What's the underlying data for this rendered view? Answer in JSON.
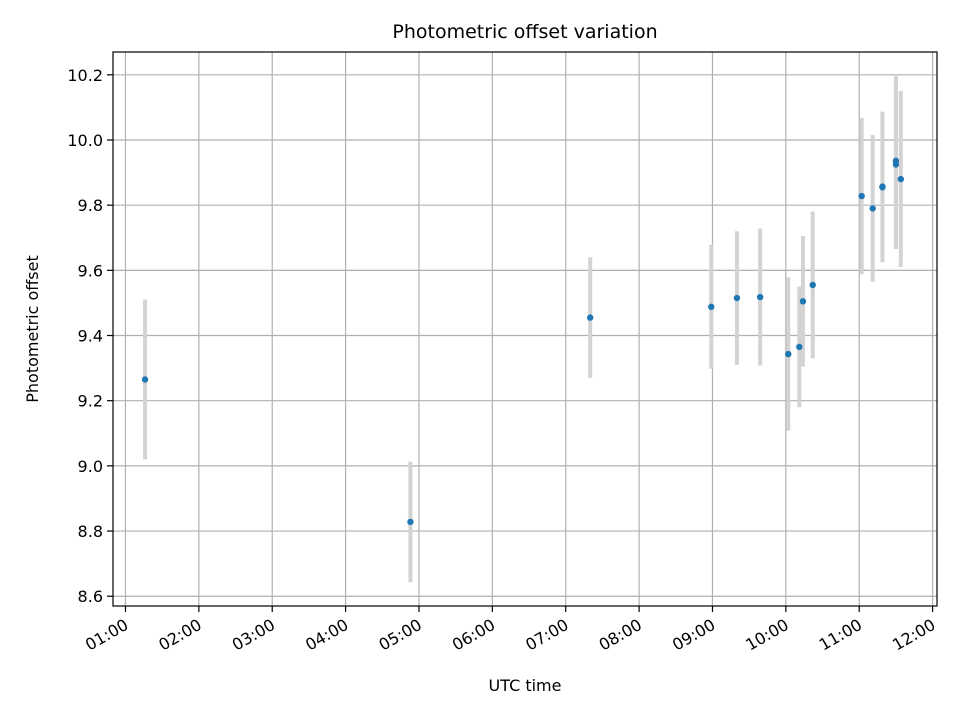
{
  "chart_data": {
    "type": "scatter",
    "title": "Photometric offset variation",
    "xlabel": "UTC time",
    "ylabel": "Photometric offset",
    "x_tick_labels": [
      "01:00",
      "02:00",
      "03:00",
      "04:00",
      "05:00",
      "06:00",
      "07:00",
      "08:00",
      "09:00",
      "10:00",
      "11:00",
      "12:00"
    ],
    "y_tick_labels": [
      "8.6",
      "8.8",
      "9.0",
      "9.2",
      "9.4",
      "9.6",
      "9.8",
      "10.0",
      "10.2"
    ],
    "x_ticks_hours": [
      1,
      2,
      3,
      4,
      5,
      6,
      7,
      8,
      9,
      10,
      11,
      12
    ],
    "y_ticks": [
      8.6,
      8.8,
      9.0,
      9.2,
      9.4,
      9.6,
      9.8,
      10.0,
      10.2
    ],
    "xlim_hours": [
      0.83,
      12.06
    ],
    "ylim": [
      8.57,
      10.27
    ],
    "grid": true,
    "colors": {
      "points": "#1f77b4",
      "errorbars": "#d3d3d3",
      "grid": "#b0b0b0"
    },
    "series": [
      {
        "points": [
          {
            "t": "01:16",
            "y": 9.265,
            "err": 0.245
          },
          {
            "t": "04:53",
            "y": 8.828,
            "err": 0.185
          },
          {
            "t": "07:20",
            "y": 9.455,
            "err": 0.185
          },
          {
            "t": "08:59",
            "y": 9.488,
            "err": 0.19
          },
          {
            "t": "09:20",
            "y": 9.515,
            "err": 0.205
          },
          {
            "t": "09:39",
            "y": 9.518,
            "err": 0.21
          },
          {
            "t": "10:02",
            "y": 9.343,
            "err": 0.235
          },
          {
            "t": "10:11",
            "y": 9.365,
            "err": 0.185
          },
          {
            "t": "10:14",
            "y": 9.505,
            "err": 0.2
          },
          {
            "t": "10:22",
            "y": 9.555,
            "err": 0.225
          },
          {
            "t": "11:02",
            "y": 9.828,
            "err": 0.24
          },
          {
            "t": "11:11",
            "y": 9.79,
            "err": 0.225
          },
          {
            "t": "11:19",
            "y": 9.857,
            "err": 0.23
          },
          {
            "t": "11:19",
            "y": 9.855,
            "err": 0.23
          },
          {
            "t": "11:30",
            "y": 9.936,
            "err": 0.26
          },
          {
            "t": "11:30",
            "y": 9.925,
            "err": 0.26
          },
          {
            "t": "11:34",
            "y": 9.88,
            "err": 0.27
          }
        ]
      }
    ]
  }
}
